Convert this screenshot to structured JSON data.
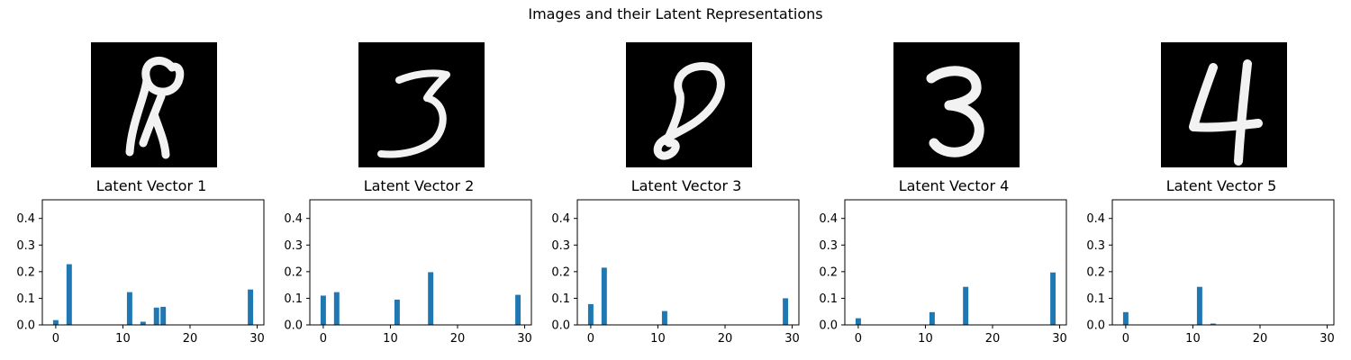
{
  "suptitle": "Images and their Latent Representations",
  "bar_color": "#1f77b4",
  "images": [
    {
      "digit": "8",
      "glyph": "8"
    },
    {
      "digit": "3",
      "glyph": "3"
    },
    {
      "digit": "8",
      "glyph": "8"
    },
    {
      "digit": "3",
      "glyph": "3"
    },
    {
      "digit": "4",
      "glyph": "4"
    }
  ],
  "chart_data": [
    {
      "type": "bar",
      "title": "Latent Vector 1",
      "xlim": [
        -2,
        31
      ],
      "ylim": [
        0,
        0.47
      ],
      "xticks": [
        0,
        10,
        20,
        30
      ],
      "yticks": [
        0.0,
        0.1,
        0.2,
        0.3,
        0.4
      ],
      "x": [
        0,
        2,
        11,
        13,
        15,
        16,
        29
      ],
      "values": [
        0.018,
        0.228,
        0.123,
        0.012,
        0.065,
        0.068,
        0.133
      ]
    },
    {
      "type": "bar",
      "title": "Latent Vector 2",
      "xlim": [
        -2,
        31
      ],
      "ylim": [
        0,
        0.47
      ],
      "xticks": [
        0,
        10,
        20,
        30
      ],
      "yticks": [
        0.0,
        0.1,
        0.2,
        0.3,
        0.4
      ],
      "x": [
        0,
        2,
        11,
        16,
        29
      ],
      "values": [
        0.11,
        0.123,
        0.095,
        0.198,
        0.113
      ]
    },
    {
      "type": "bar",
      "title": "Latent Vector 3",
      "xlim": [
        -2,
        31
      ],
      "ylim": [
        0,
        0.47
      ],
      "xticks": [
        0,
        10,
        20,
        30
      ],
      "yticks": [
        0.0,
        0.1,
        0.2,
        0.3,
        0.4
      ],
      "x": [
        0,
        2,
        11,
        29
      ],
      "values": [
        0.078,
        0.215,
        0.052,
        0.1
      ]
    },
    {
      "type": "bar",
      "title": "Latent Vector 4",
      "xlim": [
        -2,
        31
      ],
      "ylim": [
        0,
        0.47
      ],
      "xticks": [
        0,
        10,
        20,
        30
      ],
      "yticks": [
        0.0,
        0.1,
        0.2,
        0.3,
        0.4
      ],
      "x": [
        0,
        11,
        16,
        29
      ],
      "values": [
        0.025,
        0.048,
        0.143,
        0.197
      ]
    },
    {
      "type": "bar",
      "title": "Latent Vector 5",
      "xlim": [
        -2,
        31
      ],
      "ylim": [
        0,
        0.47
      ],
      "xticks": [
        0,
        10,
        20,
        30
      ],
      "yticks": [
        0.0,
        0.1,
        0.2,
        0.3,
        0.4
      ],
      "x": [
        0,
        11,
        13
      ],
      "values": [
        0.048,
        0.143,
        0.005
      ]
    }
  ]
}
